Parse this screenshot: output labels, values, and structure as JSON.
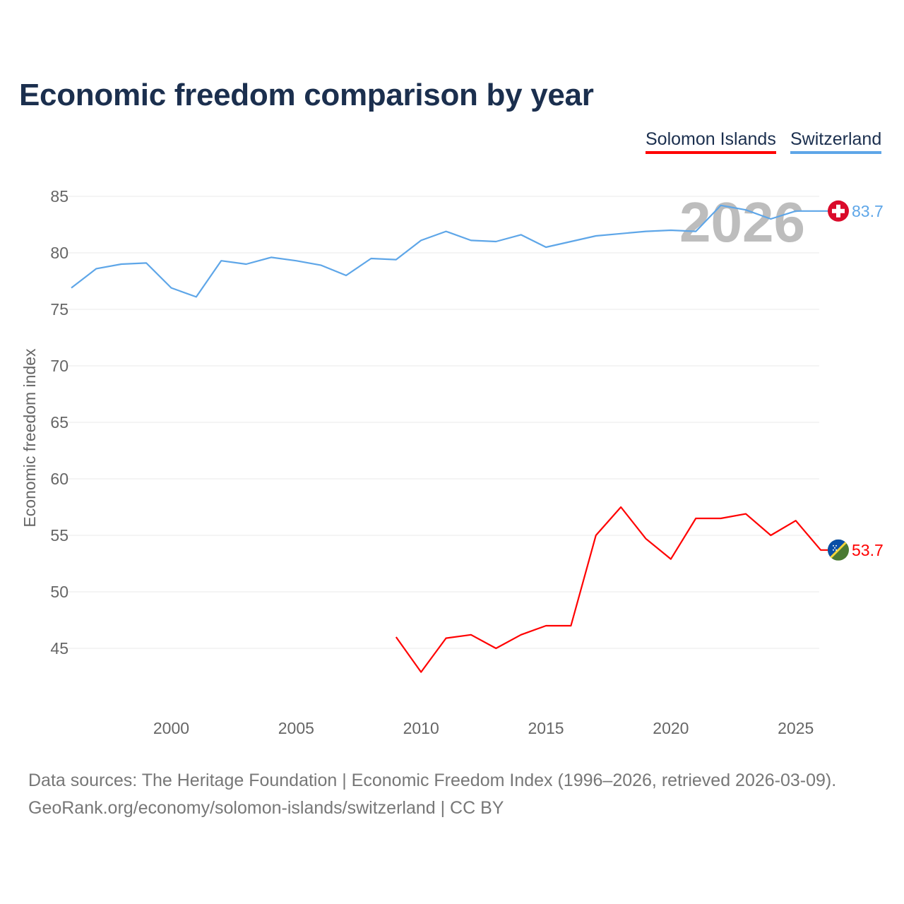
{
  "title": "Economic freedom comparison by year",
  "legend": [
    "Solomon Islands",
    "Switzerland"
  ],
  "source_line1": "Data sources: The Heritage Foundation | Economic Freedom Index (1996–2026, retrieved 2026-03-09).",
  "source_line2": "GeoRank.org/economy/solomon-islands/switzerland | CC BY",
  "chart_data": {
    "type": "line",
    "title": "Economic freedom comparison by year",
    "xlabel": "",
    "ylabel": "Economic freedom index",
    "xlim": [
      1996,
      2026
    ],
    "ylim": [
      40,
      85
    ],
    "yticks": [
      45,
      50,
      55,
      60,
      65,
      70,
      75,
      80,
      85
    ],
    "xticks": [
      2000,
      2005,
      2010,
      2015,
      2020,
      2025
    ],
    "watermark_year": "2026",
    "grid": true,
    "legend_position": "top-right",
    "series": [
      {
        "name": "Solomon Islands",
        "color": "#ff0000",
        "end_label": "53.7",
        "flag": "solomon-islands-flag",
        "x": [
          2009,
          2010,
          2011,
          2012,
          2013,
          2014,
          2015,
          2016,
          2017,
          2018,
          2019,
          2020,
          2021,
          2022,
          2023,
          2024,
          2025,
          2026
        ],
        "values": [
          46.0,
          42.9,
          45.9,
          46.2,
          45.0,
          46.2,
          47.0,
          47.0,
          55.0,
          57.5,
          54.7,
          52.9,
          56.5,
          56.5,
          56.9,
          55.0,
          56.3,
          53.7
        ]
      },
      {
        "name": "Switzerland",
        "color": "#5ea6e8",
        "end_label": "83.7",
        "flag": "switzerland-flag",
        "x": [
          1996,
          1997,
          1998,
          1999,
          2000,
          2001,
          2002,
          2003,
          2004,
          2005,
          2006,
          2007,
          2008,
          2009,
          2010,
          2011,
          2012,
          2013,
          2014,
          2015,
          2016,
          2017,
          2018,
          2019,
          2020,
          2021,
          2022,
          2023,
          2024,
          2025,
          2026
        ],
        "values": [
          76.9,
          78.6,
          79.0,
          79.1,
          76.9,
          76.1,
          79.3,
          79.0,
          79.6,
          79.3,
          78.9,
          78.0,
          79.5,
          79.4,
          81.1,
          81.9,
          81.1,
          81.0,
          81.6,
          80.5,
          81.0,
          81.5,
          81.7,
          81.9,
          82.0,
          81.9,
          84.2,
          83.8,
          83.0,
          83.7,
          83.7
        ]
      }
    ]
  }
}
